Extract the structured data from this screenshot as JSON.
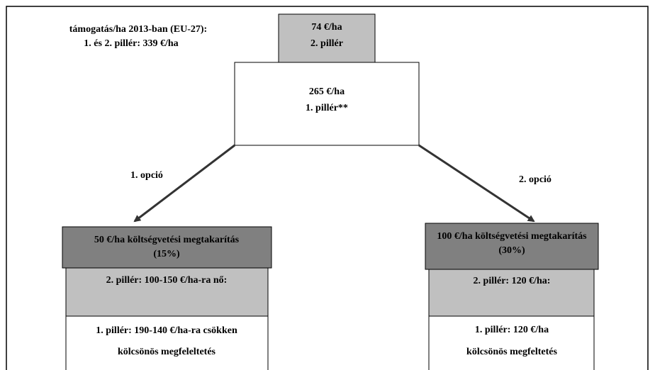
{
  "summary": [
    "támogatás/ha 2013-ban (EU-27):",
    "1. és 2. pillér: 339 €/ha"
  ],
  "top_nodes": [
    {
      "lines": [
        "74 €/ha",
        "2. pillér"
      ]
    },
    {
      "lines": [
        "265 €/ha",
        "1. pillér**"
      ]
    }
  ],
  "options": [
    {
      "label": "1. opció",
      "savings": [
        "50 €/ha költségvetési megtakarítás",
        "(15%)"
      ],
      "pillar2": "2. pillér: 100-150 €/ha-ra nő:",
      "pillar1": [
        "1. pillér: 190-140 €/ha-ra csökken",
        "kölcsönös megfeleltetés"
      ]
    },
    {
      "label": "2. opció",
      "savings": [
        "100 €/ha költségvetési megtakarítás",
        "(30%)"
      ],
      "pillar2": "2. pillér: 120 €/ha:",
      "pillar1": [
        "1. pillér: 120 €/ha",
        "kölcsönös megfeltetés"
      ]
    }
  ]
}
